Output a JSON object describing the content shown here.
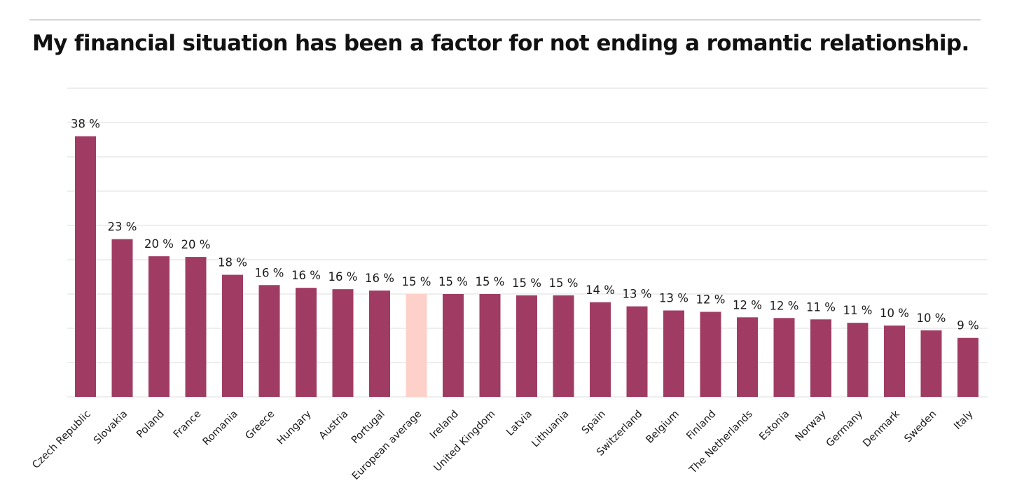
{
  "chart_data": {
    "type": "bar",
    "title": "My financial situation has been a factor for not ending a romantic relationship.",
    "categories": [
      "Czech Republic",
      "Slovakia",
      "Poland",
      "France",
      "Romania",
      "Greece",
      "Hungary",
      "Austria",
      "Portugal",
      "European average",
      "Ireland",
      "United Kingdom",
      "Latvia",
      "Lithuania",
      "Spain",
      "Switzerland",
      "Belgium",
      "Finland",
      "The Netherlands",
      "Estonia",
      "Norway",
      "Germany",
      "Denmark",
      "Sweden",
      "Italy"
    ],
    "values": [
      38,
      23,
      20.5,
      20.4,
      17.8,
      16.3,
      15.9,
      15.7,
      15.5,
      15,
      15,
      15,
      14.8,
      14.8,
      13.8,
      13.2,
      12.6,
      12.4,
      11.6,
      11.5,
      11.3,
      10.8,
      10.4,
      9.7,
      8.6
    ],
    "data_labels": [
      "38 %",
      "23 %",
      "20 %",
      "20 %",
      "18 %",
      "16 %",
      "16 %",
      "16 %",
      "16 %",
      "15 %",
      "15 %",
      "15 %",
      "15 %",
      "15 %",
      "14 %",
      "13 %",
      "13 %",
      "12 %",
      "12 %",
      "12 %",
      "11 %",
      "11 %",
      "10 %",
      "10 %",
      "9 %"
    ],
    "highlight_category": "European average",
    "ylim": [
      0,
      45
    ],
    "grid": true,
    "legend": "none",
    "colors": {
      "bar": "#a03c63",
      "highlight": "#fdd1c9",
      "grid": "#dcdcdc"
    }
  }
}
